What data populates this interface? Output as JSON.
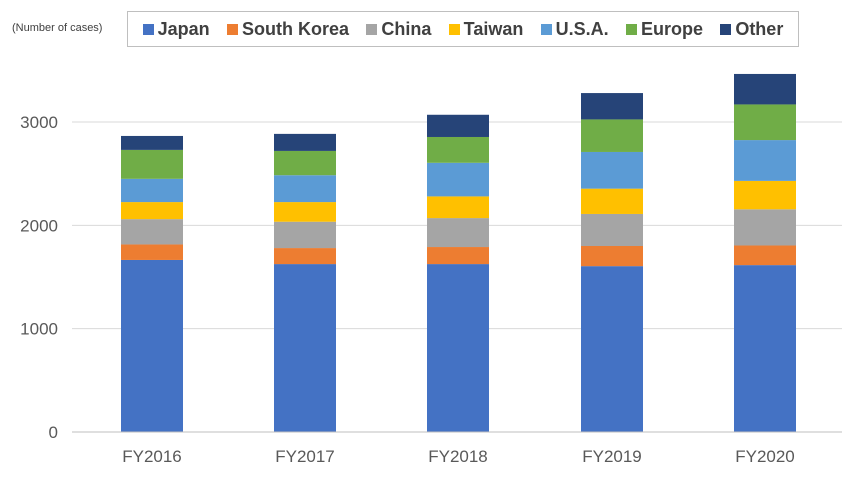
{
  "chart_data": {
    "type": "bar",
    "stacked": true,
    "title": "",
    "y_unit_label": "(Number of cases)",
    "xlabel": "",
    "ylabel": "",
    "categories": [
      "FY2016",
      "FY2017",
      "FY2018",
      "FY2019",
      "FY2020"
    ],
    "y_ticks": [
      "0",
      "1000",
      "2000",
      "3000"
    ],
    "ylim": [
      0,
      3400
    ],
    "grid": true,
    "legend_position": "top",
    "series": [
      {
        "name": "Japan",
        "color": "#4472C4",
        "values": [
          1665,
          1625,
          1625,
          1605,
          1615
        ]
      },
      {
        "name": "South Korea",
        "color": "#ED7D31",
        "values": [
          150,
          155,
          165,
          195,
          190
        ]
      },
      {
        "name": "China",
        "color": "#A5A5A5",
        "values": [
          245,
          255,
          280,
          310,
          350
        ]
      },
      {
        "name": "Taiwan",
        "color": "#FFC000",
        "values": [
          165,
          190,
          210,
          245,
          275
        ]
      },
      {
        "name": "U.S.A.",
        "color": "#5B9BD5",
        "values": [
          225,
          260,
          325,
          355,
          395
        ]
      },
      {
        "name": "Europe",
        "color": "#70AD47",
        "values": [
          280,
          235,
          250,
          315,
          345
        ]
      },
      {
        "name": "Other",
        "color": "#264478",
        "values": [
          135,
          165,
          215,
          255,
          295
        ]
      }
    ]
  }
}
